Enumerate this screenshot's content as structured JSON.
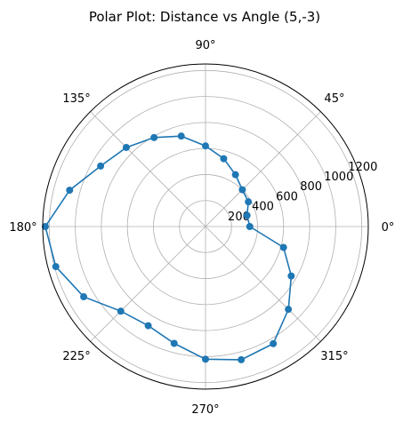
{
  "chart_data": {
    "type": "polar-line",
    "title": "Polar Plot: Distance vs Angle (5,-3)",
    "theta_deg": [
      0,
      15,
      30,
      45,
      60,
      75,
      90,
      105,
      120,
      135,
      150,
      165,
      180,
      195,
      210,
      225,
      240,
      255,
      270,
      285,
      300,
      315,
      330,
      345
    ],
    "r": [
      340,
      330,
      380,
      400,
      460,
      540,
      620,
      720,
      790,
      860,
      930,
      1080,
      1230,
      1190,
      1080,
      920,
      880,
      930,
      1020,
      1060,
      1040,
      900,
      760,
      620
    ],
    "angle_ticks": [
      "0°",
      "45°",
      "90°",
      "135°",
      "180°",
      "225°",
      "270°",
      "315°"
    ],
    "radial_ticks": [
      "200",
      "400",
      "600",
      "800",
      "1000",
      "1200"
    ],
    "radial_tick_values": [
      200,
      400,
      600,
      800,
      1000,
      1200
    ],
    "rlim": [
      0,
      1250
    ],
    "grid": true,
    "line_color": "#1f77b4"
  }
}
